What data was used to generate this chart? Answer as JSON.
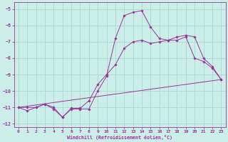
{
  "xlabel": "Windchill (Refroidissement éolien,°C)",
  "bg_color": "#cceee8",
  "grid_color": "#aad8d2",
  "line_color": "#993399",
  "ylim": [
    -12.2,
    -4.6
  ],
  "xlim": [
    -0.5,
    23.5
  ],
  "yticks": [
    -12,
    -11,
    -10,
    -9,
    -8,
    -7,
    -6,
    -5
  ],
  "xticks": [
    0,
    1,
    2,
    3,
    4,
    5,
    6,
    7,
    8,
    9,
    10,
    11,
    12,
    13,
    14,
    15,
    16,
    17,
    18,
    19,
    20,
    21,
    22,
    23
  ],
  "line1_x": [
    0,
    1,
    2,
    3,
    4,
    5,
    6,
    7,
    8,
    9,
    10,
    11,
    12,
    13,
    14,
    15,
    16,
    17,
    18,
    19,
    20,
    21,
    22,
    23
  ],
  "line1_y": [
    -11.0,
    -11.2,
    -11.0,
    -10.8,
    -11.0,
    -11.6,
    -11.1,
    -11.1,
    -11.1,
    -10.0,
    -9.1,
    -6.8,
    -5.4,
    -5.2,
    -5.1,
    -6.1,
    -6.8,
    -6.9,
    -6.9,
    -6.7,
    -8.0,
    -8.2,
    -8.6,
    -9.3
  ],
  "line2_x": [
    0,
    1,
    2,
    3,
    4,
    5,
    6,
    7,
    8,
    9,
    10,
    11,
    12,
    13,
    14,
    15,
    16,
    17,
    18,
    19,
    20,
    21,
    22,
    23
  ],
  "line2_y": [
    -11.0,
    -11.0,
    -11.0,
    -10.8,
    -11.1,
    -11.6,
    -11.05,
    -11.05,
    -10.6,
    -9.6,
    -9.0,
    -8.4,
    -7.4,
    -7.0,
    -6.9,
    -7.1,
    -7.0,
    -6.9,
    -6.7,
    -6.6,
    -6.7,
    -8.0,
    -8.5,
    -9.3
  ],
  "line3_x": [
    0,
    23
  ],
  "line3_y": [
    -11.0,
    -9.3
  ]
}
